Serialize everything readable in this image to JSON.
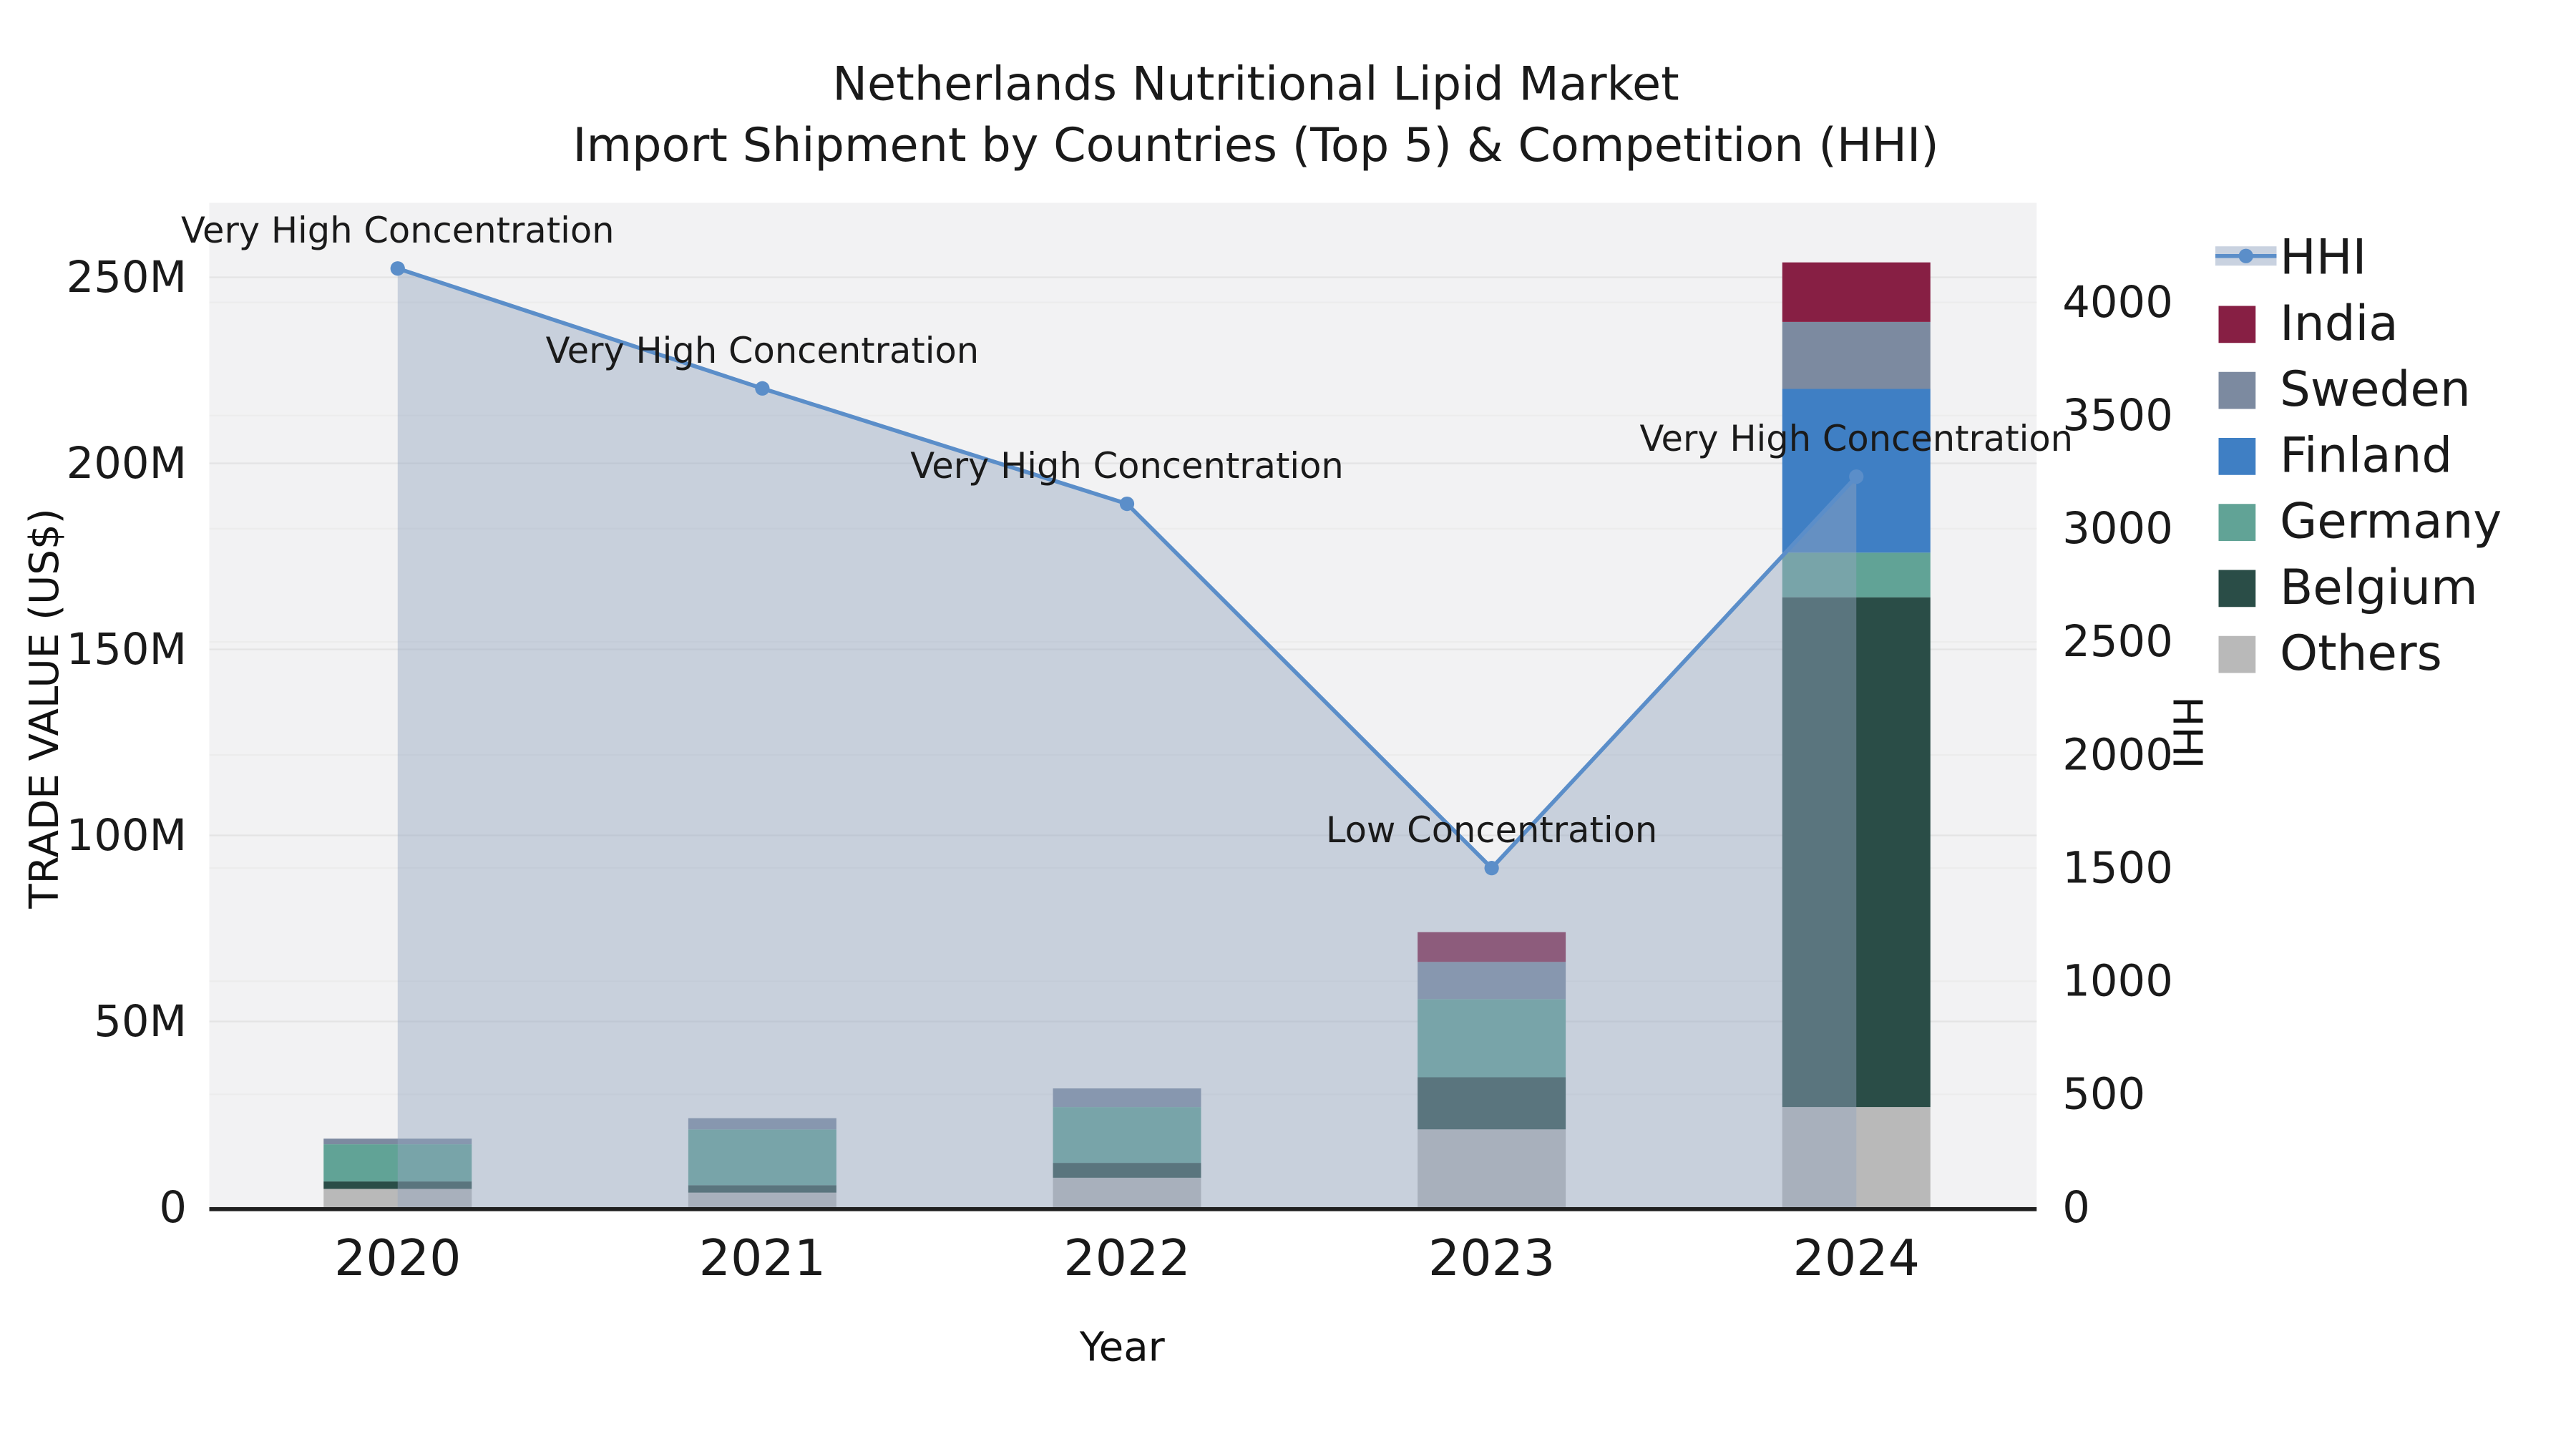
{
  "title": {
    "line1": "Netherlands Nutritional Lipid Market",
    "line2": "Import Shipment by Countries (Top 5) & Competition (HHI)"
  },
  "chart_data": {
    "type": "combo: stacked bar (trade value) + line with area (HHI)",
    "categories": [
      "2020",
      "2021",
      "2022",
      "2023",
      "2024"
    ],
    "xlabel": "Year",
    "ylabel_left": "TRADE VALUE (US$)",
    "ylabel_right": "HHI",
    "ylim_left_millions": [
      0,
      270
    ],
    "ylim_right": [
      0,
      4440
    ],
    "yticks_left": {
      "values": [
        0,
        50,
        100,
        150,
        200,
        250
      ],
      "labels": [
        "0",
        "50M",
        "100M",
        "150M",
        "200M",
        "250M"
      ]
    },
    "yticks_right": {
      "values": [
        0,
        500,
        1000,
        1500,
        2000,
        2500,
        3000,
        3500,
        4000
      ],
      "labels": [
        "0",
        "500",
        "1000",
        "1500",
        "2000",
        "2500",
        "3000",
        "3500",
        "4000"
      ]
    },
    "bar_series": [
      {
        "name": "Others",
        "color": "#b9b9b9",
        "values_millions": [
          5,
          4,
          8,
          21,
          27
        ]
      },
      {
        "name": "Belgium",
        "color": "#2a4d47",
        "values_millions": [
          2,
          2,
          4,
          14,
          137
        ]
      },
      {
        "name": "Germany",
        "color": "#61a396",
        "values_millions": [
          10,
          15,
          15,
          21,
          12
        ]
      },
      {
        "name": "Finland",
        "color": "#3f7fc4",
        "values_millions": [
          0,
          0,
          0,
          0,
          44
        ]
      },
      {
        "name": "Sweden",
        "color": "#7c8aa0",
        "values_millions": [
          1.5,
          3,
          5,
          10,
          18
        ]
      },
      {
        "name": "India",
        "color": "#871f44",
        "values_millions": [
          0,
          0,
          0,
          8,
          16
        ]
      }
    ],
    "line_series": {
      "name": "HHI",
      "color": "#5b8ec9",
      "area_fill": "rgba(148,166,194,0.45)",
      "values": [
        4150,
        3620,
        3110,
        1500,
        3230
      ]
    },
    "annotations": [
      "Very High Concentration",
      "Very High Concentration",
      "Very High Concentration",
      "Low Concentration",
      "Very High Concentration"
    ]
  },
  "legend": {
    "items": [
      {
        "label": "HHI",
        "type": "line",
        "color": "#5b8ec9"
      },
      {
        "label": "India",
        "type": "swatch",
        "color": "#871f44"
      },
      {
        "label": "Sweden",
        "type": "swatch",
        "color": "#7c8aa0"
      },
      {
        "label": "Finland",
        "type": "swatch",
        "color": "#3f7fc4"
      },
      {
        "label": "Germany",
        "type": "swatch",
        "color": "#61a396"
      },
      {
        "label": "Belgium",
        "type": "swatch",
        "color": "#2a4d47"
      },
      {
        "label": "Others",
        "type": "swatch",
        "color": "#b9b9b9"
      }
    ]
  }
}
